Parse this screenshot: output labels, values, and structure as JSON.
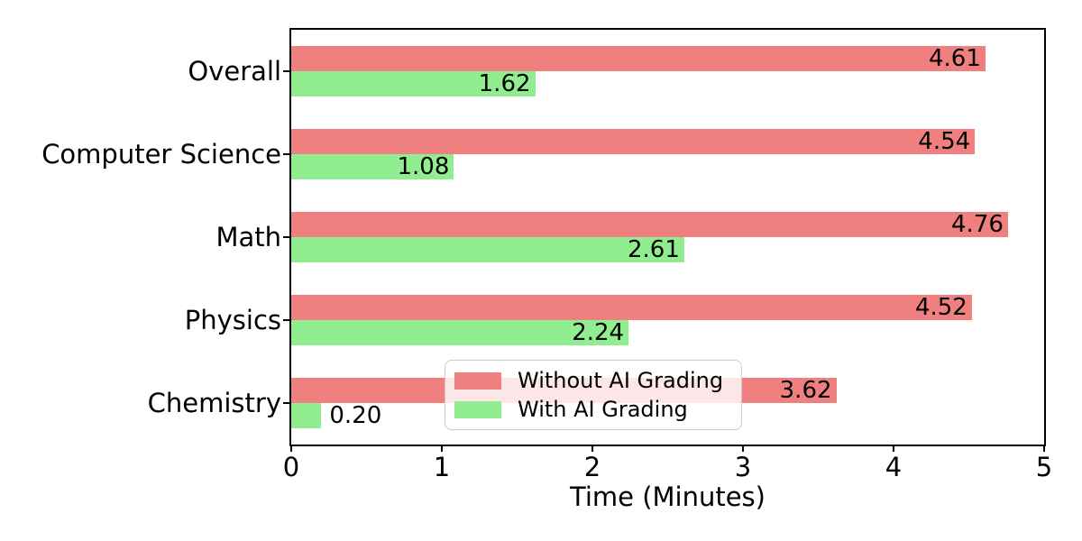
{
  "figure": {
    "background_color": "#ffffff",
    "axis_color": "#000000",
    "text_color": "#000000"
  },
  "chart_data": {
    "type": "bar",
    "orientation": "horizontal",
    "title": "",
    "xlabel": "Time (Minutes)",
    "ylabel": "",
    "xlim": [
      0,
      5
    ],
    "xticks": [
      0,
      1,
      2,
      3,
      4,
      5
    ],
    "grid": false,
    "categories": [
      "Overall",
      "Computer Science",
      "Math",
      "Physics",
      "Chemistry"
    ],
    "series": [
      {
        "name": "Without AI Grading",
        "color": "#F08080",
        "values": [
          4.61,
          4.54,
          4.76,
          4.52,
          3.62
        ],
        "value_labels": [
          "4.61",
          "4.54",
          "4.76",
          "4.52",
          "3.62"
        ]
      },
      {
        "name": "With AI Grading",
        "color": "#90EE90",
        "values": [
          1.62,
          1.08,
          2.61,
          2.24,
          0.2
        ],
        "value_labels": [
          "1.62",
          "1.08",
          "2.61",
          "2.24",
          "0.20"
        ]
      }
    ],
    "legend": {
      "position": "lower-center-inside",
      "frame_color": "#cccccc",
      "frame_background": "rgba(255,255,255,0.8)"
    }
  }
}
